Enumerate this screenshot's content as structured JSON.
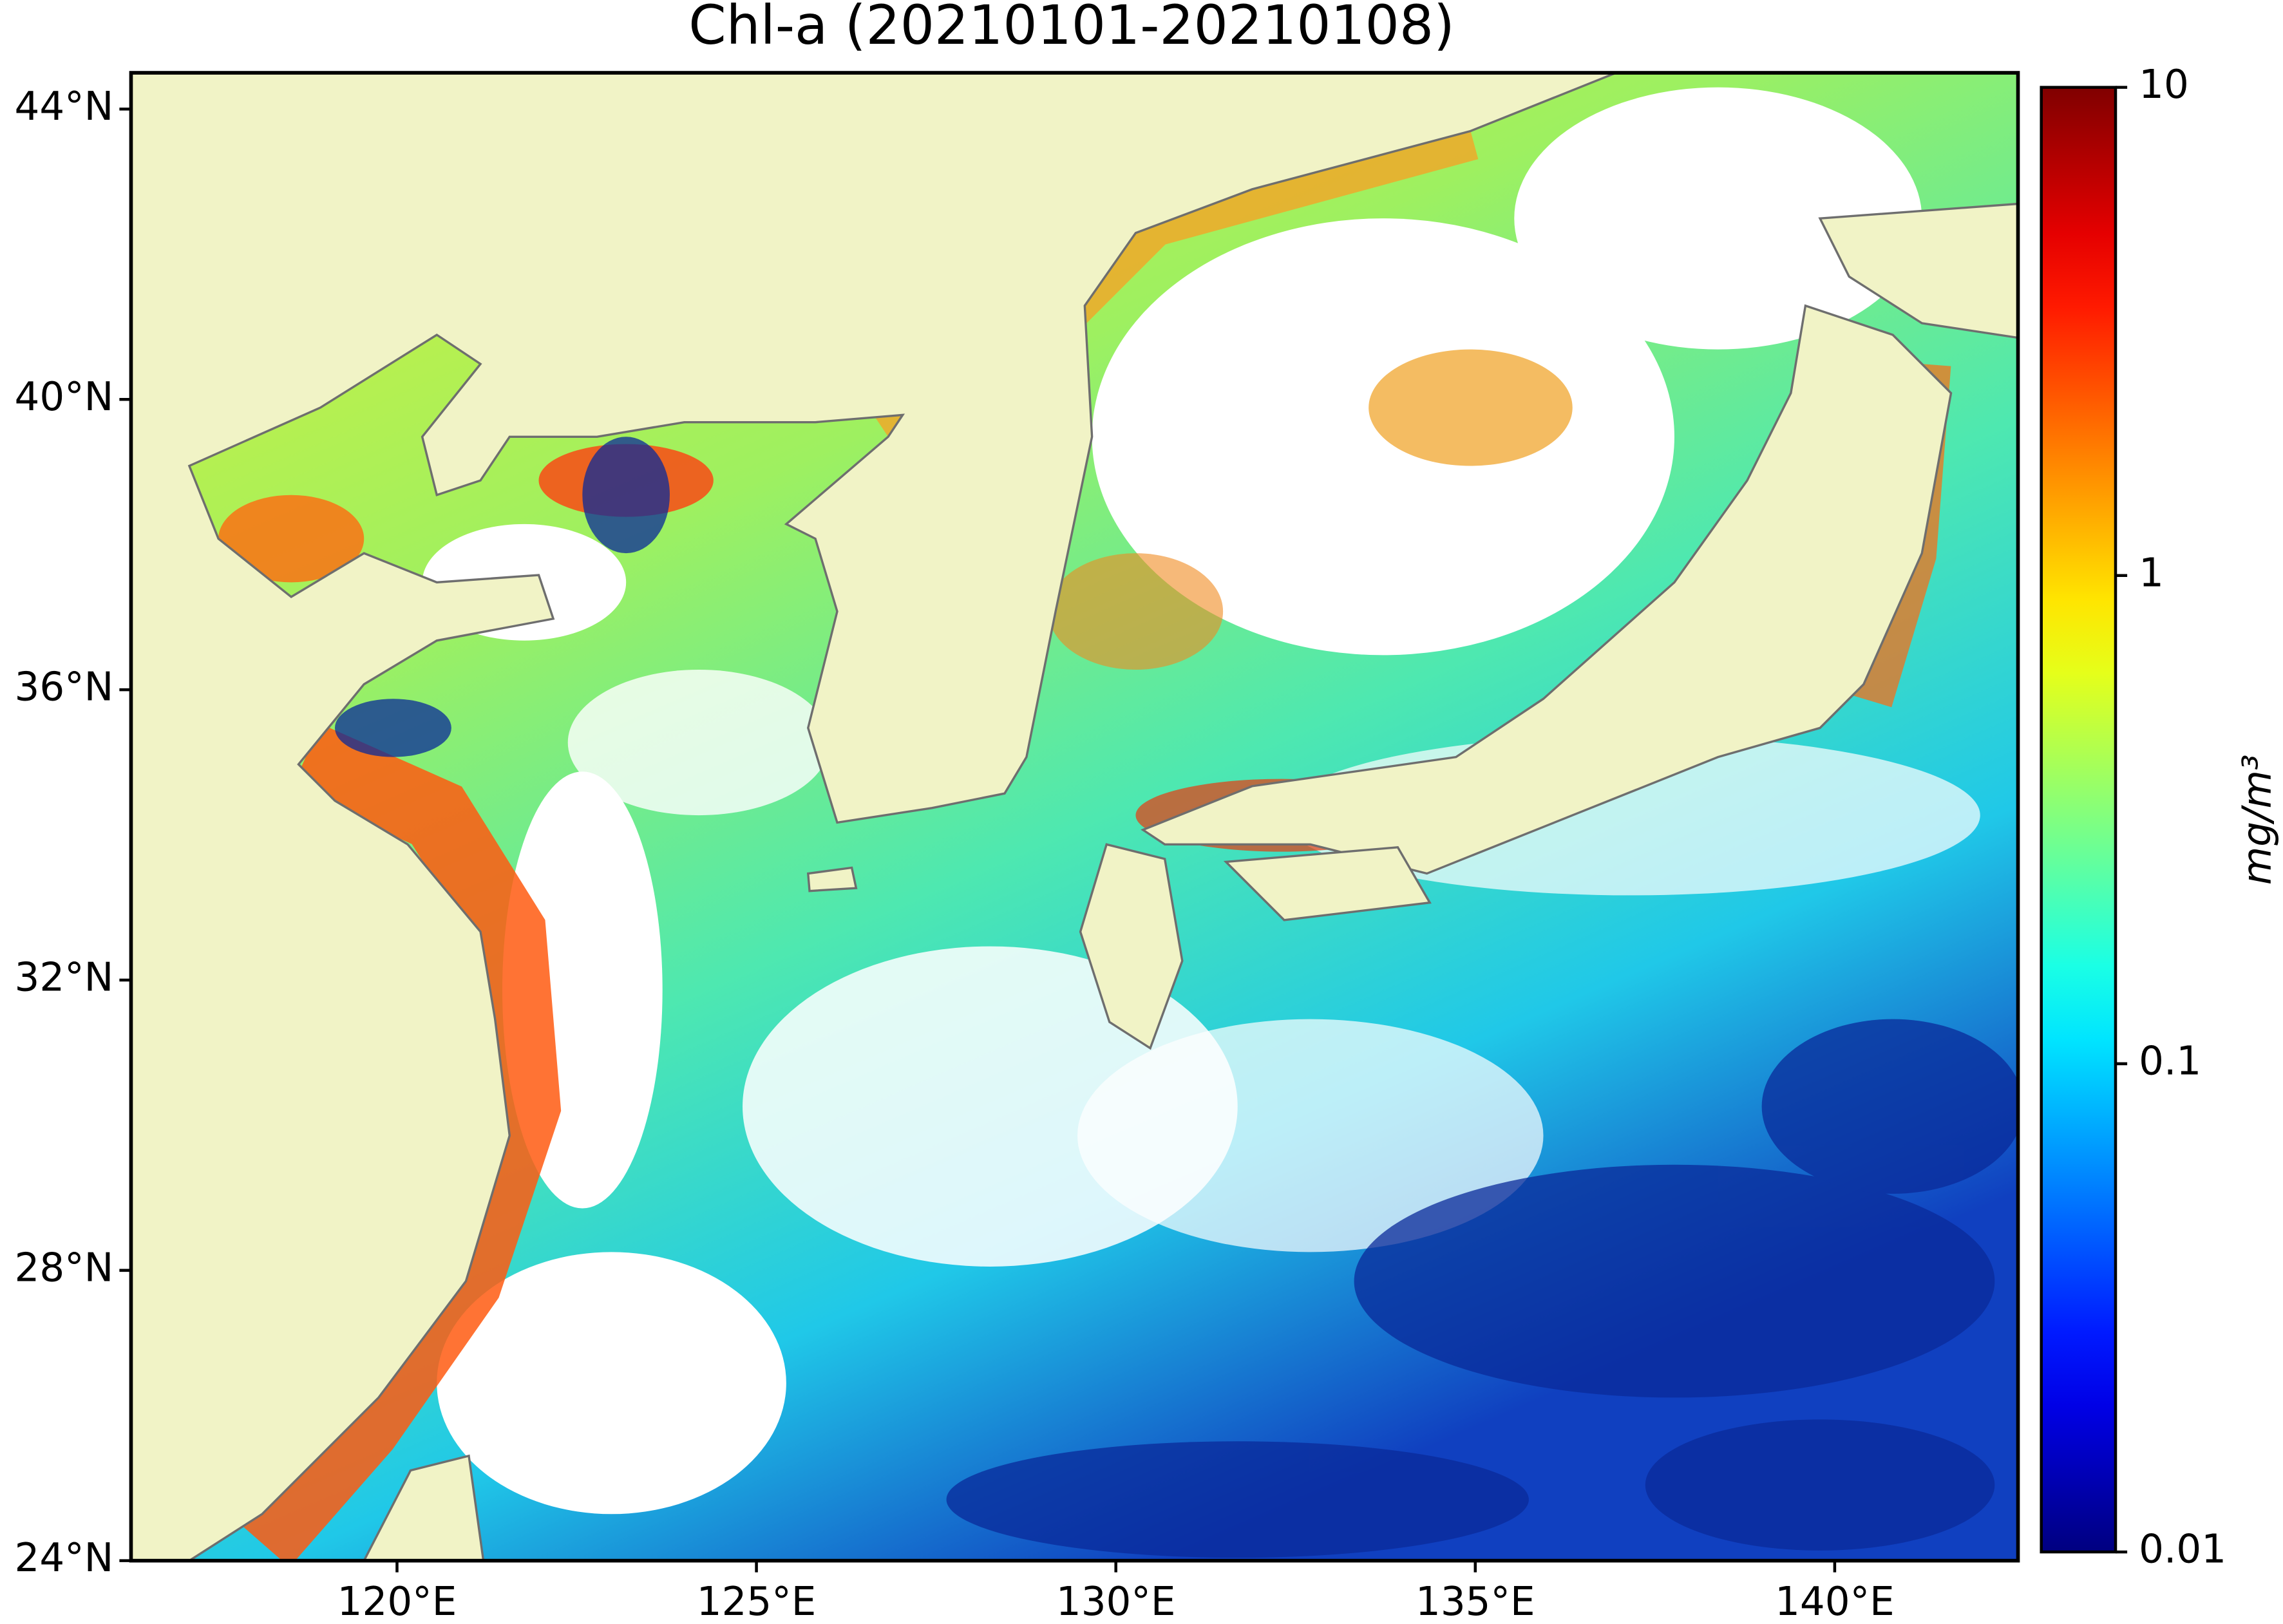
{
  "title": "Chl-a (20210101-20210108)",
  "map": {
    "xlim": [
      116.3,
      142.55
    ],
    "ylim": [
      24,
      44.5
    ],
    "xticks": [
      {
        "value": 120,
        "label": "120°E"
      },
      {
        "value": 125,
        "label": "125°E"
      },
      {
        "value": 130,
        "label": "130°E"
      },
      {
        "value": 135,
        "label": "135°E"
      },
      {
        "value": 140,
        "label": "140°E"
      }
    ],
    "yticks": [
      {
        "value": 24,
        "label": "24°N"
      },
      {
        "value": 28,
        "label": "28°N"
      },
      {
        "value": 32,
        "label": "32°N"
      },
      {
        "value": 36,
        "label": "36°N"
      },
      {
        "value": 40,
        "label": "40°N"
      },
      {
        "value": 44,
        "label": "44°N"
      }
    ]
  },
  "colorbar": {
    "label": "mg/m³",
    "colormap": "jet",
    "log": true,
    "lim": [
      0.01,
      10
    ],
    "ticks": [
      0.01,
      0.1,
      1,
      10
    ]
  }
}
